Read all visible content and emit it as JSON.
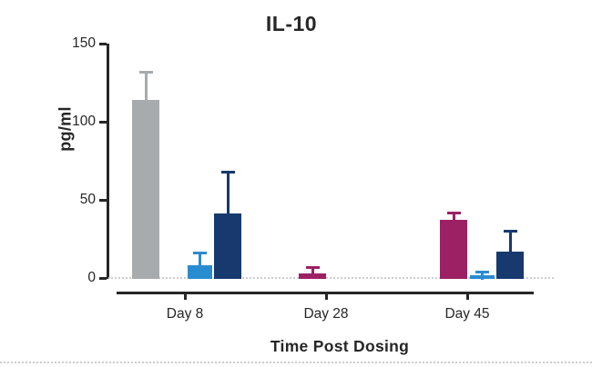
{
  "chart_data": {
    "type": "bar",
    "title": "IL-10",
    "ylabel": "pg/ml",
    "xlabel": "Time Post Dosing",
    "ylim": [
      0,
      150
    ],
    "yticks": [
      0,
      50,
      100,
      150
    ],
    "categories": [
      "Day 8",
      "Day 28",
      "Day 45"
    ],
    "legend": false,
    "grid": false,
    "baseline_style": "dotted",
    "error_bar_style": "upper whisker with cap",
    "axis_color": "#262626",
    "series_colors": {
      "gray": "#a7abae",
      "magenta": "#9c2064",
      "light-blue": "#2a8cd0",
      "dark-blue": "#17396d"
    },
    "groups": [
      {
        "category": "Day 8",
        "bars": [
          {
            "series": "gray",
            "value": 114,
            "error_plus": 18
          },
          {
            "series": "light-blue",
            "value": 8,
            "error_plus": 8
          },
          {
            "series": "dark-blue",
            "value": 41,
            "error_plus": 27
          }
        ]
      },
      {
        "category": "Day 28",
        "bars": [
          {
            "series": "magenta",
            "value": 3,
            "error_plus": 4
          }
        ]
      },
      {
        "category": "Day 45",
        "bars": [
          {
            "series": "magenta",
            "value": 37,
            "error_plus": 5
          },
          {
            "series": "light-blue",
            "value": 2,
            "error_plus": 2
          },
          {
            "series": "dark-blue",
            "value": 17,
            "error_plus": 13
          }
        ]
      }
    ]
  }
}
